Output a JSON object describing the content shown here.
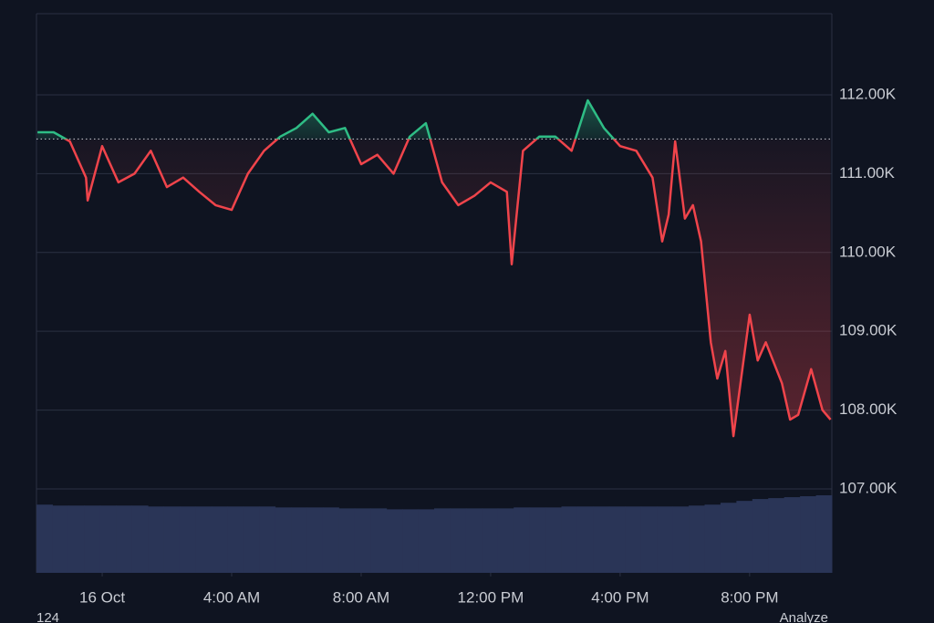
{
  "chart_data": {
    "type": "line",
    "x": [
      -2,
      -1.5,
      -1,
      -0.5,
      -0.45,
      0,
      0.5,
      1,
      1.5,
      2,
      2.5,
      3,
      3.5,
      4,
      4.5,
      5,
      5.5,
      6,
      6.5,
      7,
      7.5,
      8,
      8.5,
      9,
      9.5,
      10,
      10.5,
      11,
      11.5,
      12,
      12.5,
      12.65,
      13,
      13.5,
      14,
      14.5,
      15,
      15.5,
      16,
      16.5,
      17,
      17.3,
      17.5,
      17.7,
      18,
      18.25,
      18.5,
      18.8,
      19,
      19.25,
      19.5,
      20,
      20.25,
      20.5,
      21,
      21.25,
      21.5,
      21.9,
      22.25,
      22.5
    ],
    "values": [
      111525,
      111525,
      111410,
      110950,
      110660,
      111350,
      110890,
      111000,
      111290,
      110830,
      110950,
      110770,
      110600,
      110540,
      111000,
      111290,
      111470,
      111580,
      111760,
      111525,
      111580,
      111120,
      111240,
      111000,
      111470,
      111640,
      110890,
      110600,
      110720,
      110890,
      110770,
      109850,
      111290,
      111470,
      111470,
      111290,
      111930,
      111580,
      111350,
      111290,
      110950,
      110140,
      110480,
      111410,
      110430,
      110600,
      110140,
      108860,
      108400,
      108750,
      107670,
      109210,
      108630,
      108860,
      108340,
      107880,
      107940,
      108520,
      108000,
      107880
    ],
    "baseline": 111440,
    "up_color": "#2ebd85",
    "down_color": "#f0444b",
    "xlim": [
      -2.03,
      22.54
    ],
    "ylim": [
      105935,
      113030
    ],
    "yticks": [
      {
        "value": 107000,
        "label": "107.00K"
      },
      {
        "value": 108000,
        "label": "108.00K"
      },
      {
        "value": 109000,
        "label": "109.00K"
      },
      {
        "value": 110000,
        "label": "110.00K"
      },
      {
        "value": 111000,
        "label": "111.00K"
      },
      {
        "value": 112000,
        "label": "112.00K"
      }
    ],
    "xticks": [
      {
        "value": 0,
        "label": "16 Oct"
      },
      {
        "value": 4,
        "label": "4:00 AM"
      },
      {
        "value": 8,
        "label": "8:00 AM"
      },
      {
        "value": 12,
        "label": "12:00 PM"
      },
      {
        "value": 16,
        "label": "4:00 PM"
      },
      {
        "value": 20,
        "label": "8:00 PM"
      }
    ],
    "grid": true,
    "volume": {
      "color": "#2a3557",
      "values": [
        73,
        72,
        72,
        72,
        72,
        72,
        72,
        71,
        71,
        71,
        71,
        71,
        71,
        71,
        71,
        70,
        70,
        70,
        70,
        69,
        69,
        69,
        68,
        68,
        68,
        69,
        69,
        69,
        69,
        69,
        70,
        70,
        70,
        71,
        71,
        71,
        71,
        71,
        71,
        71,
        71,
        72,
        73,
        75,
        77,
        79,
        80,
        81,
        82,
        83
      ]
    }
  },
  "footer": {
    "left": "124",
    "right": "Analyze"
  }
}
